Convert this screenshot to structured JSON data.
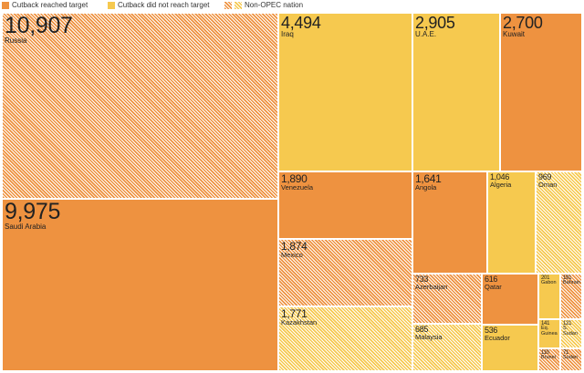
{
  "chart_data": {
    "type": "treemap",
    "legend": [
      {
        "name": "Cutback reached target",
        "color": "#ee9240",
        "hatched": false
      },
      {
        "name": "Cutback did not reach target",
        "color": "#f6c94f",
        "hatched": false
      },
      {
        "name": "Non-OPEC nation",
        "colors": [
          "#ee9240",
          "#f6c94f"
        ],
        "hatched": true
      }
    ],
    "categories": [
      "Russia",
      "Saudi Arabia",
      "Iraq",
      "U.A.E.",
      "Kuwait",
      "Venezuela",
      "Mexico",
      "Kazakhstan",
      "Angola",
      "Algeria",
      "Oman",
      "Azerbaijan",
      "Malaysia",
      "Qatar",
      "Ecuador",
      "Gabon",
      "Bahrain",
      "Eq. Guinea",
      "S. Sudan",
      "Brunei",
      "Sudan"
    ],
    "values": [
      10907,
      9975,
      4494,
      2905,
      2700,
      1890,
      1874,
      1771,
      1641,
      1046,
      969,
      733,
      685,
      616,
      536,
      201,
      191,
      141,
      121,
      110,
      71
    ],
    "value_labels": [
      "10,907",
      "9,975",
      "4,494",
      "2,905",
      "2,700",
      "1,890",
      "1,874",
      "1,771",
      "1,641",
      "1,046",
      "969",
      "733",
      "685",
      "616",
      "536",
      "201",
      "191",
      "141",
      "121",
      "110",
      "71"
    ],
    "colors": [
      "#ee9240",
      "#ee9240",
      "#f6c94f",
      "#f6c94f",
      "#ee9240",
      "#ee9240",
      "#ee9240",
      "#f6c94f",
      "#ee9240",
      "#f6c94f",
      "#f6c94f",
      "#ee9240",
      "#f6c94f",
      "#ee9240",
      "#f6c94f",
      "#f6c94f",
      "#ee9240",
      "#f6c94f",
      "#f6c94f",
      "#ee9240",
      "#ee9240"
    ],
    "hatched": [
      true,
      false,
      false,
      false,
      false,
      false,
      true,
      true,
      false,
      false,
      true,
      true,
      true,
      false,
      false,
      false,
      true,
      false,
      true,
      true,
      true
    ]
  }
}
